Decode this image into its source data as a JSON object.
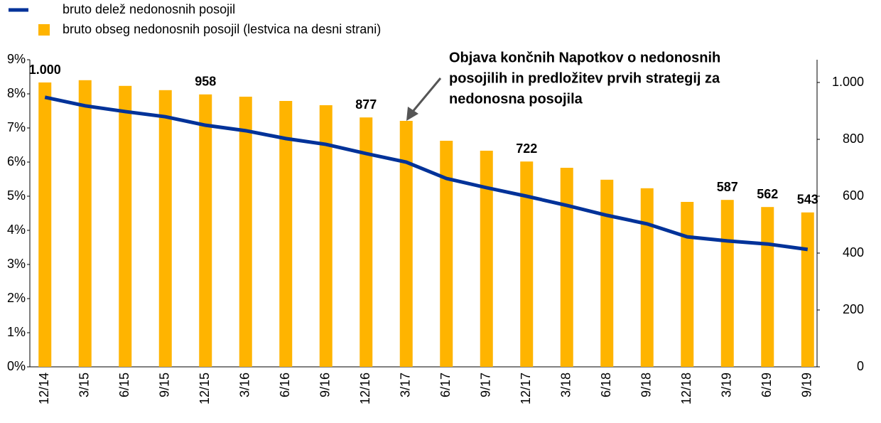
{
  "chart_data": {
    "type": "bar-line",
    "categories": [
      "12/14",
      "3/15",
      "6/15",
      "9/15",
      "12/15",
      "3/16",
      "6/16",
      "9/16",
      "12/16",
      "3/17",
      "6/17",
      "9/17",
      "12/17",
      "3/18",
      "6/18",
      "9/18",
      "12/18",
      "3/19",
      "6/19",
      "9/19"
    ],
    "series": [
      {
        "name": "bruto delež nedonosnih posojil",
        "type": "line",
        "color": "#003299",
        "axis": "y",
        "values": [
          7.9,
          7.65,
          7.48,
          7.33,
          7.08,
          6.92,
          6.69,
          6.52,
          6.25,
          6.0,
          5.52,
          5.25,
          5.0,
          4.73,
          4.44,
          4.19,
          3.81,
          3.69,
          3.6,
          3.44
        ]
      },
      {
        "name": "bruto obseg nedonosnih posojil (lestvica na desni strani)",
        "type": "bar",
        "color": "#ffb400",
        "axis": "y2",
        "values": [
          1000,
          1008,
          988,
          973,
          958,
          950,
          935,
          920,
          877,
          865,
          795,
          760,
          722,
          700,
          658,
          628,
          580,
          587,
          562,
          543
        ],
        "value_labels": [
          "1.000",
          null,
          null,
          null,
          "958",
          null,
          null,
          null,
          "877",
          null,
          null,
          null,
          "722",
          null,
          null,
          null,
          null,
          "587",
          "562",
          "543"
        ]
      }
    ],
    "ylim": [
      0,
      9
    ],
    "yticks": [
      {
        "value": 0,
        "label": "0%"
      },
      {
        "value": 1,
        "label": "1%"
      },
      {
        "value": 2,
        "label": "2%"
      },
      {
        "value": 3,
        "label": "3%"
      },
      {
        "value": 4,
        "label": "4%"
      },
      {
        "value": 5,
        "label": "5%"
      },
      {
        "value": 6,
        "label": "6%"
      },
      {
        "value": 7,
        "label": "7%"
      },
      {
        "value": 8,
        "label": "8%"
      },
      {
        "value": 9,
        "label": "9%"
      }
    ],
    "y2lim": [
      0,
      1080
    ],
    "y2ticks": [
      0,
      200,
      400,
      600,
      800,
      {
        "value": 1000,
        "label": "1.000"
      }
    ],
    "annotation": [
      "Objava končnih Napotkov o nedonosnih",
      "posojilih in predložitev prvih strategij za",
      "nedonosna posojila"
    ]
  }
}
